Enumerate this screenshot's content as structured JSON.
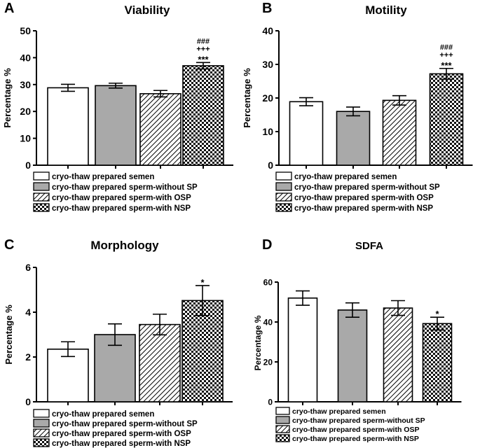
{
  "legend_labels": [
    "cryo-thaw prepared semen",
    "cryo-thaw prepared sperm-without SP",
    "cryo-thaw prepared sperm-with OSP",
    "cryo-thaw prepared sperm-with NSP"
  ],
  "chart_data": [
    {
      "type": "bar",
      "panel": "A",
      "title": "Viability",
      "ylabel": "Percentage %",
      "xlabel": "",
      "ylim": [
        0,
        50
      ],
      "yticks": [
        0,
        10,
        20,
        30,
        40,
        50
      ],
      "categories": [
        "cryo-thaw prepared semen",
        "cryo-thaw prepared sperm-without SP",
        "cryo-thaw prepared sperm-with OSP",
        "cryo-thaw prepared sperm-with NSP"
      ],
      "values": [
        28.8,
        29.6,
        26.6,
        37.0
      ],
      "errors": [
        1.3,
        0.9,
        1.2,
        1.2
      ],
      "significance": [
        "",
        "",
        "",
        "###\n+++\n***"
      ]
    },
    {
      "type": "bar",
      "panel": "B",
      "title": "Motility",
      "ylabel": "Percentage %",
      "xlabel": "",
      "ylim": [
        0,
        40
      ],
      "yticks": [
        0,
        10,
        20,
        30,
        40
      ],
      "categories": [
        "cryo-thaw prepared semen",
        "cryo-thaw prepared sperm-without SP",
        "cryo-thaw prepared sperm-with OSP",
        "cryo-thaw prepared sperm-with NSP"
      ],
      "values": [
        18.9,
        16.0,
        19.3,
        27.2
      ],
      "errors": [
        1.2,
        1.3,
        1.4,
        1.6
      ],
      "significance": [
        "",
        "",
        "",
        "###\n+++\n***"
      ]
    },
    {
      "type": "bar",
      "panel": "C",
      "title": "Morphology",
      "ylabel": "Percentage %",
      "xlabel": "",
      "ylim": [
        0,
        6
      ],
      "yticks": [
        0,
        2,
        4,
        6
      ],
      "categories": [
        "cryo-thaw prepared semen",
        "cryo-thaw prepared sperm-without SP",
        "cryo-thaw prepared sperm-with OSP",
        "cryo-thaw prepared sperm-with NSP"
      ],
      "values": [
        2.35,
        3.0,
        3.45,
        4.52
      ],
      "errors": [
        0.33,
        0.48,
        0.46,
        0.67
      ],
      "significance": [
        "",
        "",
        "",
        "*"
      ]
    },
    {
      "type": "bar",
      "panel": "D",
      "title": "SDFA",
      "ylabel": "Percentage %",
      "xlabel": "",
      "ylim": [
        0,
        60
      ],
      "yticks": [
        0,
        20,
        40,
        60
      ],
      "categories": [
        "cryo-thaw prepared semen",
        "cryo-thaw prepared sperm-without SP",
        "cryo-thaw prepared sperm-with OSP",
        "cryo-thaw prepared sperm-with NSP"
      ],
      "values": [
        52.0,
        46.0,
        47.0,
        39.2
      ],
      "errors": [
        3.6,
        3.6,
        3.7,
        3.2
      ],
      "significance": [
        "",
        "",
        "",
        "*"
      ]
    }
  ]
}
